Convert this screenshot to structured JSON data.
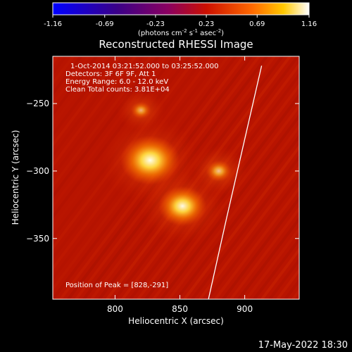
{
  "chart_data": {
    "type": "heatmap",
    "title": "Reconstructed RHESSI Image",
    "xlabel": "Heliocentric X (arcsec)",
    "ylabel": "Heliocentric Y (arcsec)",
    "xlim": [
      752,
      942
    ],
    "ylim": [
      -395,
      -215
    ],
    "x_ticks": [
      800,
      850,
      900
    ],
    "y_ticks": [
      -250,
      -300,
      -350
    ],
    "colorbar": {
      "ticks": [
        "-1.16",
        "-0.69",
        "-0.23",
        "0.23",
        "0.69",
        "1.16"
      ],
      "range": [
        -1.16,
        1.16
      ],
      "label_main": "(photons cm",
      "label_exp1": "-2",
      "label_mid1": " s",
      "label_exp2": "-1",
      "label_mid2": " asec",
      "label_exp3": "-2",
      "label_end": ")"
    },
    "info_lines": [
      "1-Oct-2014 03:21:52.000 to 03:25:52.000",
      "Detectors: 3F 6F 9F, Att 1",
      "Energy Range: 6.0 - 12.0 keV",
      "Clean    Total counts: 3.81E+04"
    ],
    "peak_label": "Position of Peak = [828,-291]",
    "sources": [
      {
        "x": 827,
        "y": -292,
        "intensity": 1.16
      },
      {
        "x": 852,
        "y": -326,
        "intensity": 0.95
      },
      {
        "x": 880,
        "y": -300,
        "intensity": 0.45
      },
      {
        "x": 820,
        "y": -255,
        "intensity": 0.3
      }
    ],
    "limb_line": {
      "points": [
        [
          913,
          -222
        ],
        [
          886,
          -335
        ],
        [
          872,
          -395
        ]
      ]
    },
    "timestamp": "17-May-2022 18:30",
    "colors": {
      "background": "#000000",
      "limb": "#ffffff"
    }
  }
}
